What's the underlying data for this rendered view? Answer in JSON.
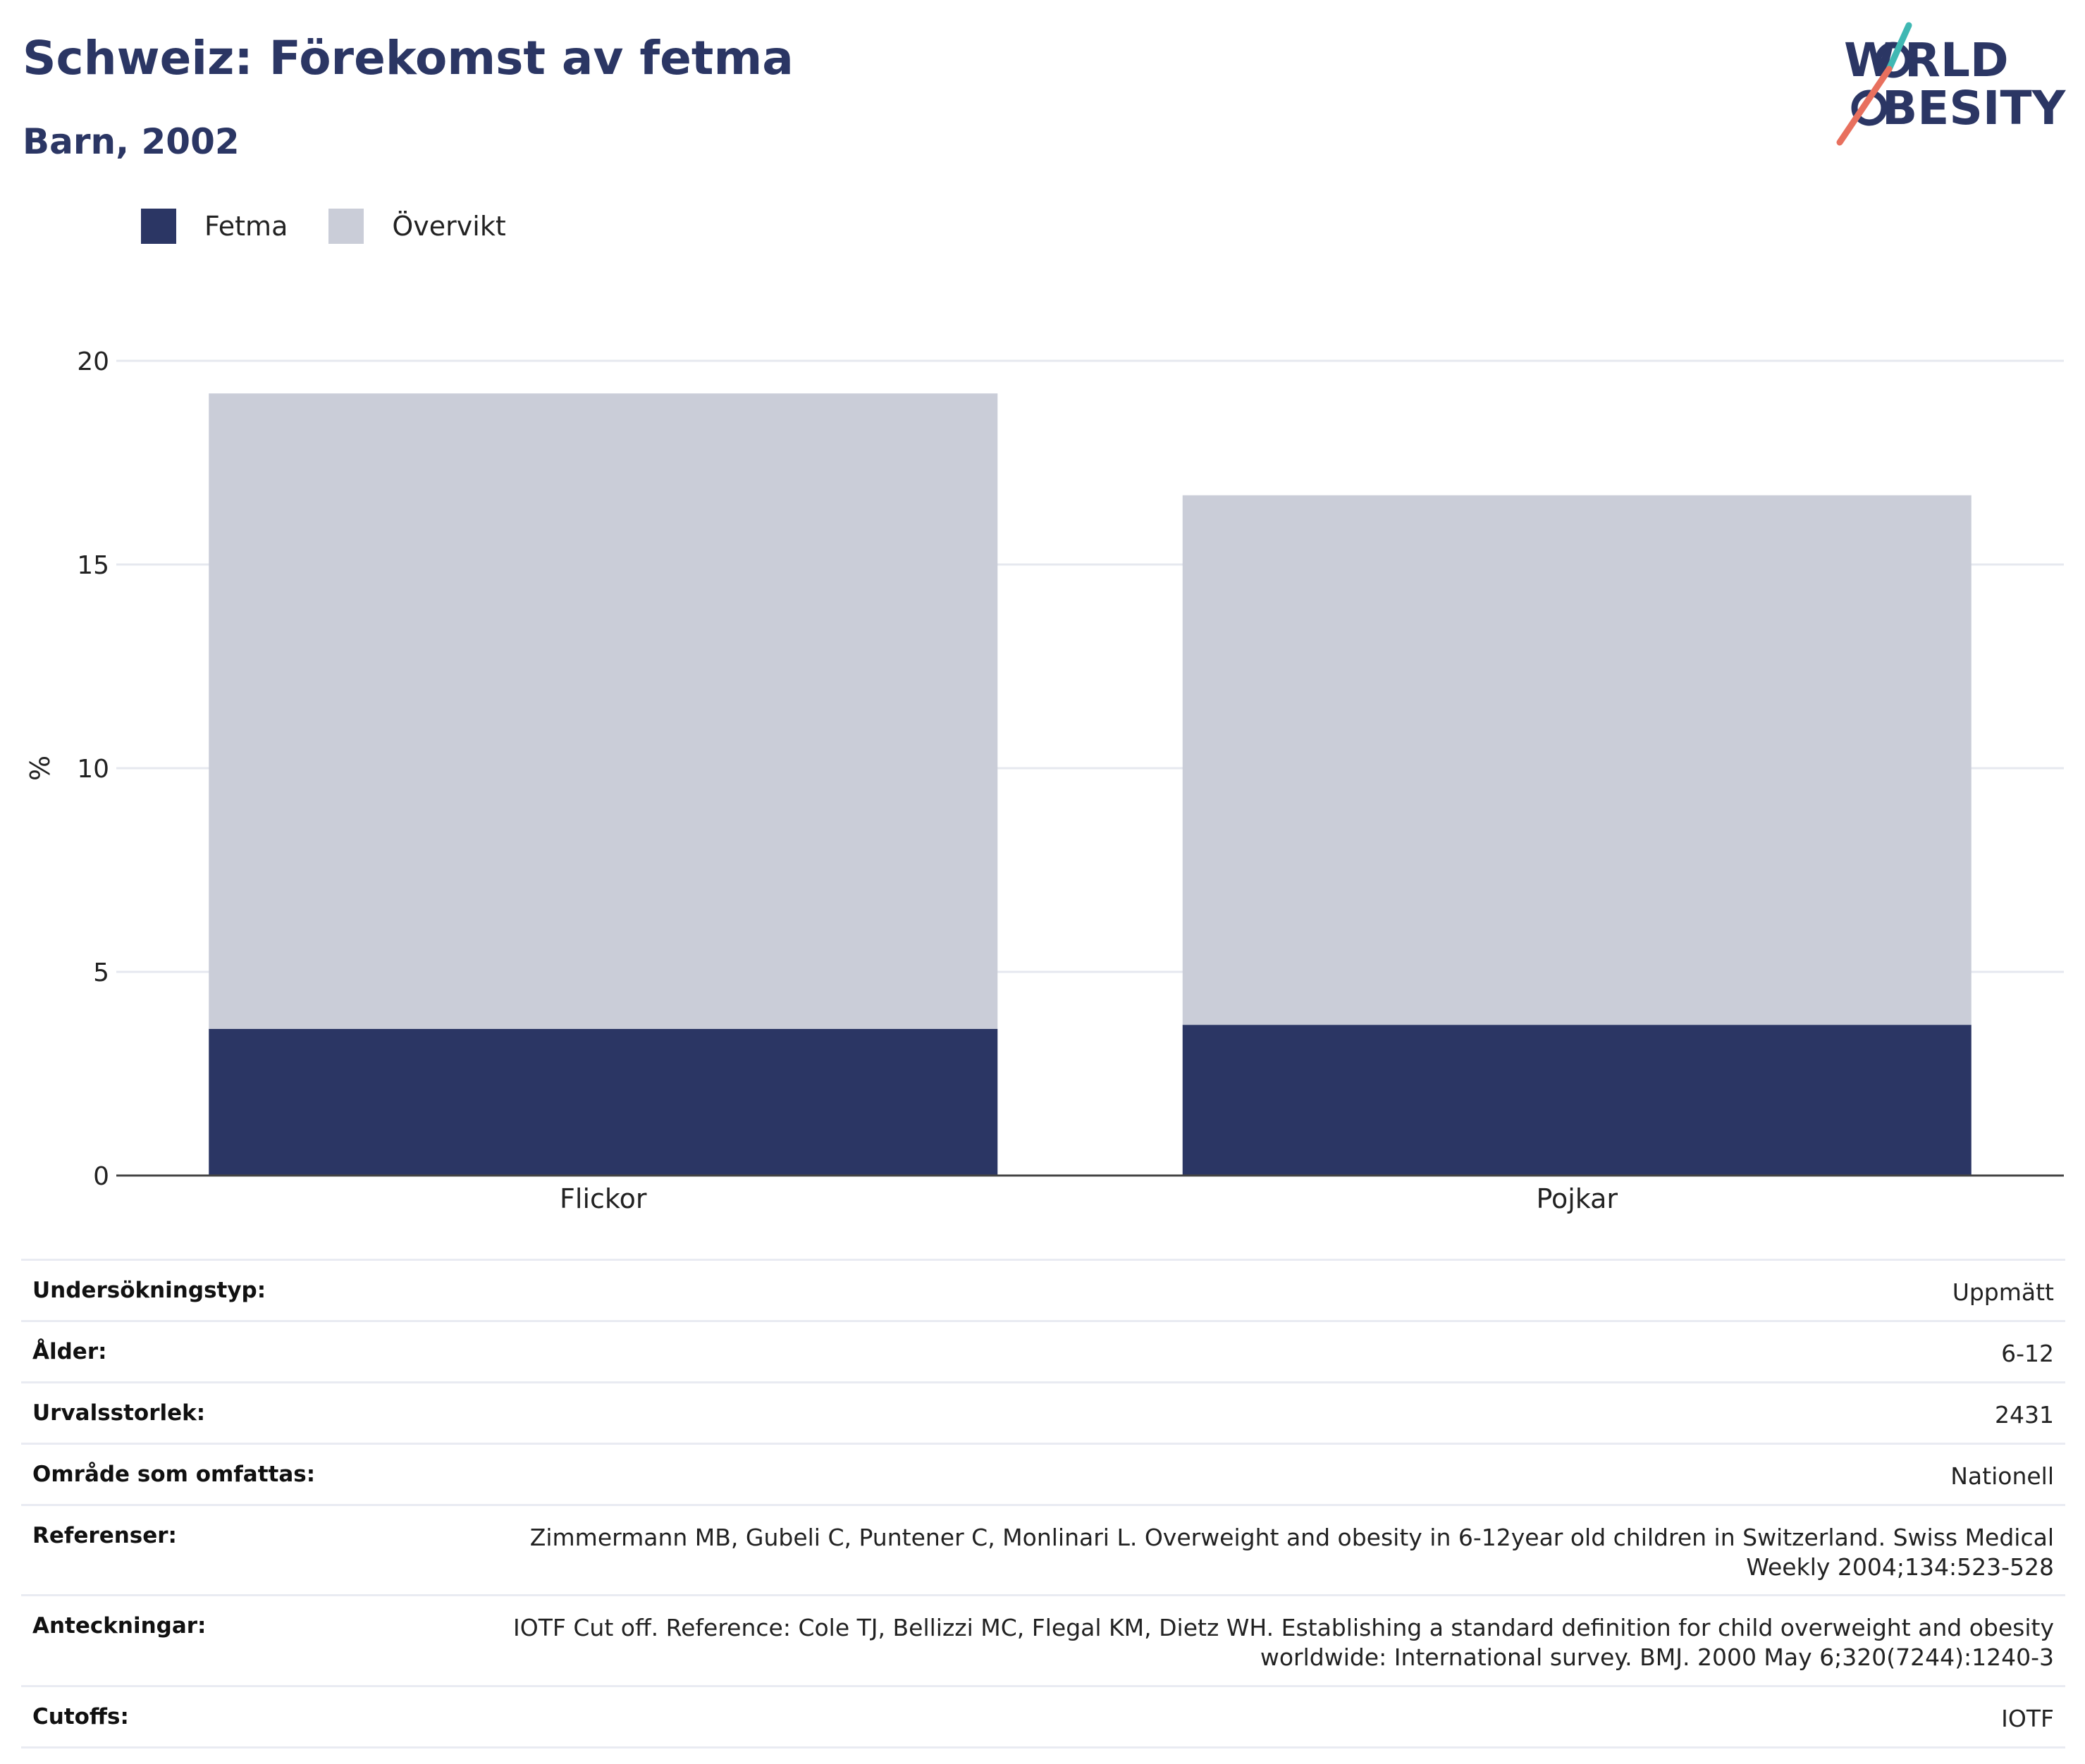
{
  "header": {
    "title": "Schweiz: Förekomst av fetma",
    "subtitle": "Barn, 2002",
    "logo_text": "WORLD OBESITY"
  },
  "legend": [
    {
      "label": "Fetma",
      "color": "#2b3664"
    },
    {
      "label": "Övervikt",
      "color": "#cacdd8"
    }
  ],
  "chart_data": {
    "type": "bar",
    "stacked": true,
    "categories": [
      "Flickor",
      "Pojkar"
    ],
    "series": [
      {
        "name": "Fetma",
        "values": [
          3.6,
          3.7
        ],
        "color": "#2b3664"
      },
      {
        "name": "Övervikt",
        "values": [
          15.6,
          13.0
        ],
        "color": "#cacdd8"
      }
    ],
    "ylabel": "%",
    "ylim": [
      0,
      20
    ],
    "yticks": [
      0,
      5,
      10,
      15,
      20
    ],
    "grid": true,
    "legend_position": "top-left"
  },
  "metadata": [
    {
      "label": "Undersökningstyp:",
      "value": "Uppmätt"
    },
    {
      "label": "Ålder:",
      "value": "6-12"
    },
    {
      "label": "Urvalsstorlek:",
      "value": "2431"
    },
    {
      "label": "Område som omfattas:",
      "value": "Nationell"
    },
    {
      "label": "Referenser:",
      "value": "Zimmermann MB, Gubeli C, Puntener C, Monlinari L. Overweight and obesity in 6-12year old children in Switzerland. Swiss Medical Weekly 2004;134:523-528"
    },
    {
      "label": "Anteckningar:",
      "value": "IOTF Cut off. Reference: Cole TJ, Bellizzi MC, Flegal KM, Dietz WH. Establishing a standard definition for child overweight and obesity worldwide: International survey. BMJ. 2000 May 6;320(7244):1240-3"
    },
    {
      "label": "Cutoffs:",
      "value": "IOTF"
    }
  ]
}
